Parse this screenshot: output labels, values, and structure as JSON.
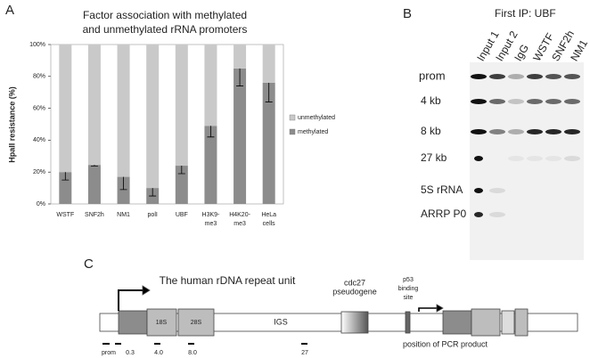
{
  "panel_labels": [
    "A",
    "B",
    "C"
  ],
  "chart_data": {
    "type": "stacked-bar",
    "title": [
      "Factor association with methylated",
      "and unmethylated rRNA promoters"
    ],
    "ylabel": "HpaII resistance (%)",
    "categories": [
      "WSTF",
      "SNF2h",
      "NM1",
      "polI",
      "UBF",
      [
        "H3K9-",
        "me3"
      ],
      [
        "H4K20-",
        "me3"
      ],
      [
        "HeLa",
        "cells"
      ]
    ],
    "series": [
      {
        "name": "methylated",
        "color": "#8c8c8c",
        "values": [
          20,
          24.5,
          17,
          10,
          24,
          49,
          85,
          76
        ],
        "errors": [
          5,
          0.7,
          8,
          5,
          5,
          7,
          11,
          12
        ]
      },
      {
        "name": "unmethylated",
        "color": "#c9c9c9",
        "values": [
          80,
          75.5,
          83,
          90,
          76,
          51,
          15,
          24
        ]
      }
    ],
    "ylim": [
      0,
      100
    ],
    "yticks": [
      {
        "value": 0,
        "label": "0%"
      },
      {
        "value": 20,
        "label": "20%"
      },
      {
        "value": 40,
        "label": "40%"
      },
      {
        "value": 60,
        "label": "60%"
      },
      {
        "value": 80,
        "label": "80%"
      },
      {
        "value": 100,
        "label": "100%"
      }
    ],
    "legend": "right"
  },
  "blot": {
    "title": "First IP: UBF",
    "lanes": [
      "Input 1",
      "Input 2",
      "IgG",
      "WSTF",
      "SNF2h",
      "NM1"
    ],
    "rows": [
      "prom",
      "4 kb",
      "8 kb",
      "27 kb",
      "5S rRNA",
      "ARRP P0"
    ]
  },
  "diagram": {
    "title": "The human rDNA repeat unit",
    "regions": [
      "18S",
      "28S",
      "IGS"
    ],
    "cdc27": [
      "cdc27",
      "pseudogene"
    ],
    "p53": [
      "p53",
      "binding",
      "site"
    ],
    "pcr_products": [
      "prom",
      "0.3",
      "4.0",
      "8.0",
      "27"
    ],
    "pcr_legend": "position of PCR product"
  }
}
